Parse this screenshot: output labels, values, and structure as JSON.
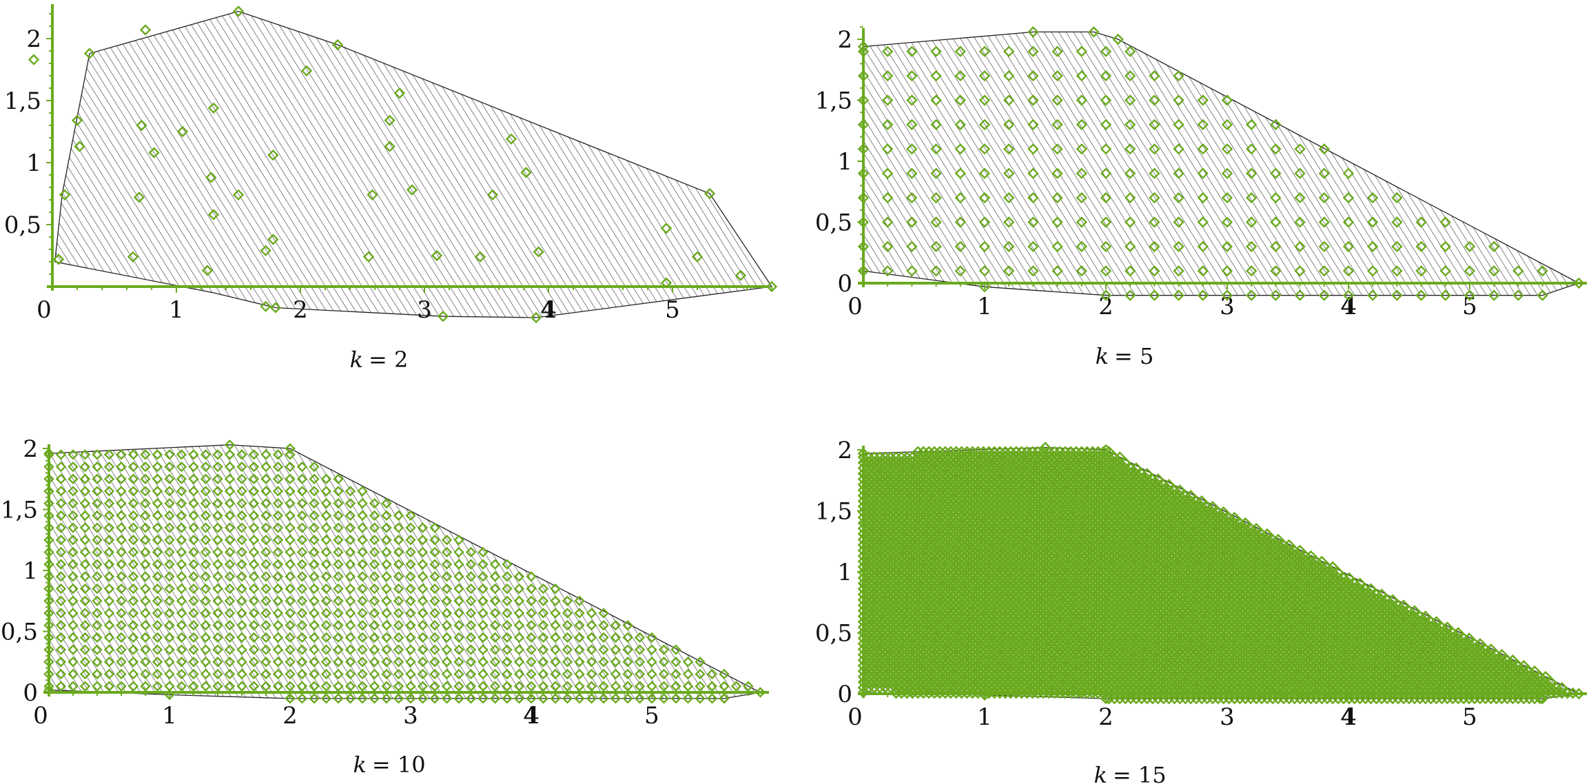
{
  "figure": {
    "axis_color": "#6aaa1e",
    "marker_color": "#6aaa1e",
    "hatch_color": "#222222"
  },
  "chart_data": [
    {
      "type": "scatter",
      "caption_var": "k",
      "caption_eq": "= 2",
      "xticks": [
        "0",
        "1",
        "2",
        "3",
        "4",
        "5"
      ],
      "xtick_values": [
        0,
        1,
        2,
        3,
        4,
        5
      ],
      "yticks": [
        "0,5",
        "1",
        "1,5",
        "2"
      ],
      "ytick_values": [
        0.5,
        1,
        1.5,
        2
      ],
      "xlim": [
        0,
        5.8
      ],
      "ylim": [
        -0.25,
        2.25
      ],
      "bold_xtick": "4",
      "grid": false,
      "hull": [
        [
          0.02,
          0.2
        ],
        [
          0.08,
          0.75
        ],
        [
          0.3,
          1.88
        ],
        [
          1.5,
          2.22
        ],
        [
          2.3,
          1.95
        ],
        [
          5.3,
          0.75
        ],
        [
          5.8,
          0.0
        ],
        [
          3.9,
          -0.25
        ],
        [
          3.15,
          -0.24
        ],
        [
          1.8,
          -0.17
        ],
        [
          1.3,
          -0.05
        ]
      ],
      "points": [
        [
          0.05,
          0.22
        ],
        [
          0.1,
          0.74
        ],
        [
          -0.15,
          1.83
        ],
        [
          0.3,
          1.88
        ],
        [
          0.2,
          1.34
        ],
        [
          0.22,
          1.13
        ],
        [
          0.65,
          0.24
        ],
        [
          0.7,
          0.72
        ],
        [
          0.72,
          1.3
        ],
        [
          0.82,
          1.08
        ],
        [
          0.75,
          2.07
        ],
        [
          1.05,
          1.25
        ],
        [
          1.25,
          0.13
        ],
        [
          1.28,
          0.88
        ],
        [
          1.3,
          0.58
        ],
        [
          1.3,
          1.44
        ],
        [
          1.5,
          2.22
        ],
        [
          1.5,
          0.74
        ],
        [
          1.72,
          -0.16
        ],
        [
          1.8,
          -0.17
        ],
        [
          1.72,
          0.29
        ],
        [
          1.78,
          0.38
        ],
        [
          1.78,
          1.06
        ],
        [
          2.05,
          1.74
        ],
        [
          2.3,
          1.95
        ],
        [
          2.55,
          0.24
        ],
        [
          2.58,
          0.74
        ],
        [
          2.72,
          1.34
        ],
        [
          2.72,
          1.13
        ],
        [
          2.8,
          1.56
        ],
        [
          2.9,
          0.78
        ],
        [
          3.1,
          0.25
        ],
        [
          3.15,
          -0.24
        ],
        [
          3.45,
          0.24
        ],
        [
          3.55,
          0.74
        ],
        [
          3.7,
          1.19
        ],
        [
          3.82,
          0.92
        ],
        [
          3.92,
          0.28
        ],
        [
          3.9,
          -0.25
        ],
        [
          4.95,
          0.47
        ],
        [
          4.95,
          0.03
        ],
        [
          5.2,
          0.24
        ],
        [
          5.3,
          0.75
        ],
        [
          5.55,
          0.09
        ],
        [
          5.8,
          0.0
        ]
      ]
    },
    {
      "type": "scatter",
      "caption_var": "k",
      "caption_eq": "= 5",
      "xticks": [
        "0",
        "1",
        "2",
        "3",
        "4",
        "5"
      ],
      "xtick_values": [
        0,
        1,
        2,
        3,
        4,
        5
      ],
      "yticks": [
        "0",
        "0,5",
        "1",
        "1,5",
        "2"
      ],
      "ytick_values": [
        0,
        0.5,
        1,
        1.5,
        2
      ],
      "xlim": [
        0,
        5.9
      ],
      "ylim": [
        -0.1,
        2.1
      ],
      "bold_xtick": "4",
      "grid": false,
      "hull": [
        [
          0,
          1.94
        ],
        [
          1.4,
          2.06
        ],
        [
          1.9,
          2.06
        ],
        [
          2.1,
          2.0
        ],
        [
          5.9,
          0.0
        ],
        [
          5.6,
          -0.1
        ],
        [
          2.0,
          -0.1
        ],
        [
          1.0,
          -0.03
        ],
        [
          0,
          0.1
        ]
      ],
      "generator": "fill",
      "spacing": 0.2
    },
    {
      "type": "scatter",
      "caption_var": "k",
      "caption_eq": "= 10",
      "xticks": [
        "0",
        "1",
        "2",
        "3",
        "4",
        "5"
      ],
      "xtick_values": [
        0,
        1,
        2,
        3,
        4,
        5
      ],
      "yticks": [
        "0",
        "0,5",
        "1",
        "1,5",
        "2"
      ],
      "ytick_values": [
        0,
        0.5,
        1,
        1.5,
        2
      ],
      "xlim": [
        0,
        5.9
      ],
      "ylim": [
        -0.05,
        2.05
      ],
      "bold_xtick": "4",
      "grid": false,
      "hull": [
        [
          0,
          1.96
        ],
        [
          1.5,
          2.03
        ],
        [
          2.0,
          2.0
        ],
        [
          5.9,
          0.0
        ],
        [
          5.6,
          -0.05
        ],
        [
          2.0,
          -0.05
        ],
        [
          1.0,
          -0.02
        ],
        [
          0,
          0.02
        ]
      ],
      "generator": "fill",
      "spacing": 0.1
    },
    {
      "type": "scatter",
      "caption_var": "k",
      "caption_eq": "= 15",
      "xticks": [
        "0",
        "1",
        "2",
        "3",
        "4",
        "5"
      ],
      "xtick_values": [
        0,
        1,
        2,
        3,
        4,
        5
      ],
      "yticks": [
        "0",
        "0,5",
        "1",
        "1,5",
        "2"
      ],
      "ytick_values": [
        0,
        0.5,
        1,
        1.5,
        2
      ],
      "xlim": [
        0,
        5.9
      ],
      "ylim": [
        -0.05,
        2.05
      ],
      "bold_xtick": "4",
      "grid": false,
      "hull": [
        [
          0,
          1.97
        ],
        [
          1.5,
          2.02
        ],
        [
          2.0,
          2.0
        ],
        [
          5.9,
          0.0
        ],
        [
          5.6,
          -0.04
        ],
        [
          2.0,
          -0.04
        ],
        [
          1.0,
          -0.01
        ],
        [
          0,
          0.01
        ]
      ],
      "generator": "fill",
      "spacing": 0.045
    }
  ]
}
